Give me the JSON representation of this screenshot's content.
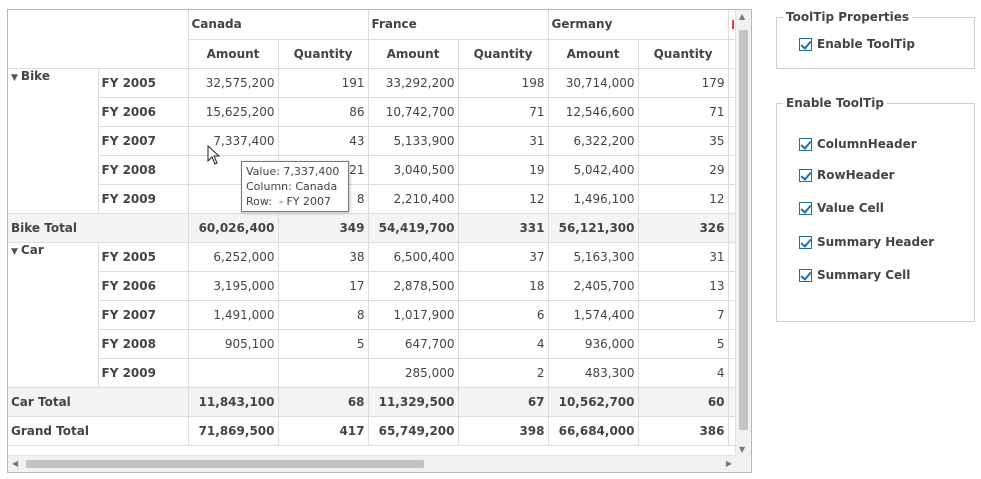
{
  "grid": {
    "countries": [
      "Canada",
      "France",
      "Germany"
    ],
    "measures": [
      "Amount",
      "Quantity"
    ],
    "groups": [
      {
        "name": "Bike",
        "rows": [
          {
            "year": "FY 2005",
            "vals": [
              "32,575,200",
              "191",
              "33,292,200",
              "198",
              "30,714,000",
              "179"
            ]
          },
          {
            "year": "FY 2006",
            "vals": [
              "15,625,200",
              "86",
              "10,742,700",
              "71",
              "12,546,600",
              "71"
            ]
          },
          {
            "year": "FY 2007",
            "vals": [
              "7,337,400",
              "43",
              "5,133,900",
              "31",
              "6,322,200",
              "35"
            ]
          },
          {
            "year": "FY 2008",
            "vals": [
              "3,3",
              "21",
              "3,040,500",
              "19",
              "5,042,400",
              "29"
            ]
          },
          {
            "year": "FY 2009",
            "vals": [
              "1,1",
              "8",
              "2,210,400",
              "12",
              "1,496,100",
              "12"
            ]
          }
        ],
        "total_label": "Bike Total",
        "total": [
          "60,026,400",
          "349",
          "54,419,700",
          "331",
          "56,121,300",
          "326"
        ]
      },
      {
        "name": "Car",
        "rows": [
          {
            "year": "FY 2005",
            "vals": [
              "6,252,000",
              "38",
              "6,500,400",
              "37",
              "5,163,300",
              "31"
            ]
          },
          {
            "year": "FY 2006",
            "vals": [
              "3,195,000",
              "17",
              "2,878,500",
              "18",
              "2,405,700",
              "13"
            ]
          },
          {
            "year": "FY 2007",
            "vals": [
              "1,491,000",
              "8",
              "1,017,900",
              "6",
              "1,574,400",
              "7"
            ]
          },
          {
            "year": "FY 2008",
            "vals": [
              "905,100",
              "5",
              "647,700",
              "4",
              "936,000",
              "5"
            ]
          },
          {
            "year": "FY 2009",
            "vals": [
              "",
              "",
              "285,000",
              "2",
              "483,300",
              "4"
            ]
          }
        ],
        "total_label": "Car Total",
        "total": [
          "11,843,100",
          "68",
          "11,329,500",
          "67",
          "10,562,700",
          "60"
        ]
      }
    ],
    "grand_label": "Grand Total",
    "grand": [
      "71,869,500",
      "417",
      "65,749,200",
      "398",
      "66,684,000",
      "386"
    ]
  },
  "tooltip": {
    "value": "Value: 7,337,400",
    "column": "Column: Canada",
    "row": "Row:  - FY 2007"
  },
  "panel": {
    "props_title": "ToolTip Properties",
    "enable_label": "Enable ToolTip",
    "enable_checked": true,
    "enable_group_title": "Enable ToolTip",
    "options": [
      {
        "label": "ColumnHeader",
        "checked": true
      },
      {
        "label": "RowHeader",
        "checked": true
      },
      {
        "label": "Value Cell",
        "checked": true
      },
      {
        "label": "Summary Header",
        "checked": true
      },
      {
        "label": "Summary Cell",
        "checked": true
      }
    ]
  },
  "colors": {
    "checkbox": "#1a6fb0",
    "summary_bg": "#f4f4f4",
    "border": "#dcdcdc"
  }
}
